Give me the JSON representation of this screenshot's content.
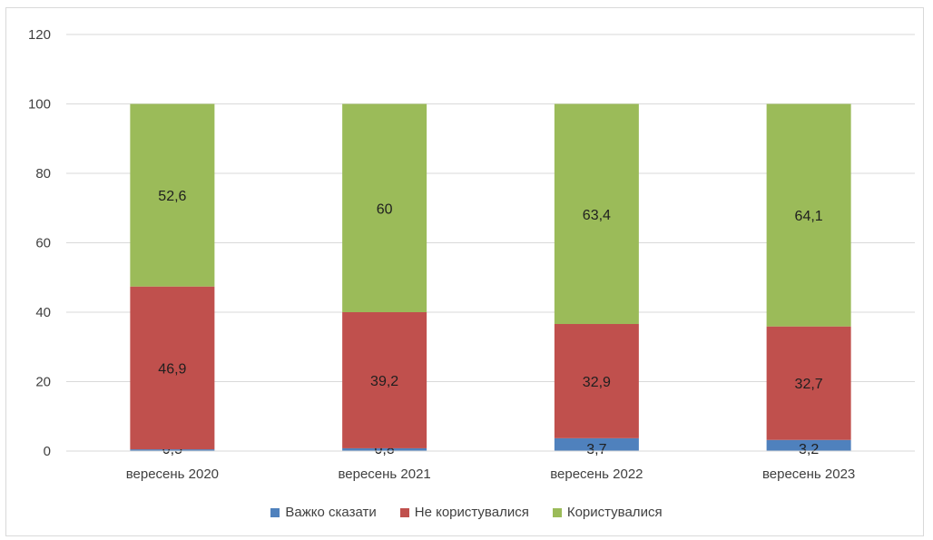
{
  "chart_data": {
    "type": "bar",
    "stacked": true,
    "categories": [
      "вересень 2020",
      "вересень 2021",
      "вересень 2022",
      "вересень 2023"
    ],
    "series": [
      {
        "name": "Важко сказати",
        "values": [
          0.5,
          0.8,
          3.7,
          3.2
        ],
        "labels": [
          "0,5",
          "0,8",
          "3,7",
          "3,2"
        ],
        "color": "#4f81bd"
      },
      {
        "name": "Не користувалися",
        "values": [
          46.9,
          39.2,
          32.9,
          32.7
        ],
        "labels": [
          "46,9",
          "39,2",
          "32,9",
          "32,7"
        ],
        "color": "#c0504d"
      },
      {
        "name": "Користувалися",
        "values": [
          52.6,
          60,
          63.4,
          64.1
        ],
        "labels": [
          "52,6",
          "60",
          "63,4",
          "64,1"
        ],
        "color": "#9bbb59"
      }
    ],
    "y_ticks": [
      "0",
      "20",
      "40",
      "60",
      "80",
      "100",
      "120"
    ],
    "ylim": [
      0,
      120
    ],
    "grid": true,
    "legend_position": "bottom"
  }
}
